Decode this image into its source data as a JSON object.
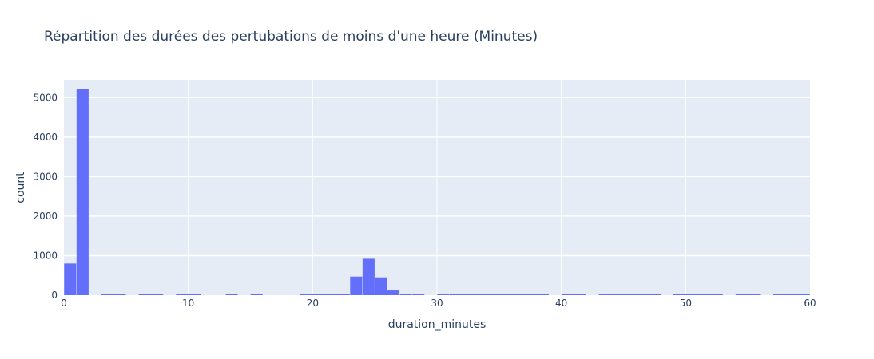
{
  "chart_data": {
    "type": "bar",
    "title": "Répartition des durées des pertubations de moins d'une heure (Minutes)",
    "xlabel": "duration_minutes",
    "ylabel": "count",
    "xlim": [
      0,
      60
    ],
    "ylim": [
      0,
      5450
    ],
    "bin_width": 1,
    "x_ticks": [
      0,
      10,
      20,
      30,
      40,
      50,
      60
    ],
    "y_ticks": [
      0,
      1000,
      2000,
      3000,
      4000,
      5000
    ],
    "bins": [
      {
        "x0": 0,
        "x1": 1,
        "count": 800
      },
      {
        "x0": 1,
        "x1": 2,
        "count": 5220
      },
      {
        "x0": 3,
        "x1": 5,
        "count": 15
      },
      {
        "x0": 6,
        "x1": 8,
        "count": 15
      },
      {
        "x0": 9,
        "x1": 11,
        "count": 15
      },
      {
        "x0": 13,
        "x1": 14,
        "count": 15
      },
      {
        "x0": 15,
        "x1": 16,
        "count": 15
      },
      {
        "x0": 19,
        "x1": 23,
        "count": 15
      },
      {
        "x0": 23,
        "x1": 24,
        "count": 470
      },
      {
        "x0": 24,
        "x1": 25,
        "count": 920
      },
      {
        "x0": 25,
        "x1": 26,
        "count": 450
      },
      {
        "x0": 26,
        "x1": 27,
        "count": 120
      },
      {
        "x0": 27,
        "x1": 28,
        "count": 35
      },
      {
        "x0": 28,
        "x1": 29,
        "count": 30
      },
      {
        "x0": 30,
        "x1": 31,
        "count": 25
      },
      {
        "x0": 31,
        "x1": 39,
        "count": 15
      },
      {
        "x0": 40,
        "x1": 42,
        "count": 15
      },
      {
        "x0": 43,
        "x1": 48,
        "count": 15
      },
      {
        "x0": 49,
        "x1": 53,
        "count": 15
      },
      {
        "x0": 54,
        "x1": 56,
        "count": 15
      },
      {
        "x0": 57,
        "x1": 60,
        "count": 15
      }
    ],
    "bar_color": "#636efa",
    "plot_bg": "#e5ecf6",
    "grid": true
  }
}
